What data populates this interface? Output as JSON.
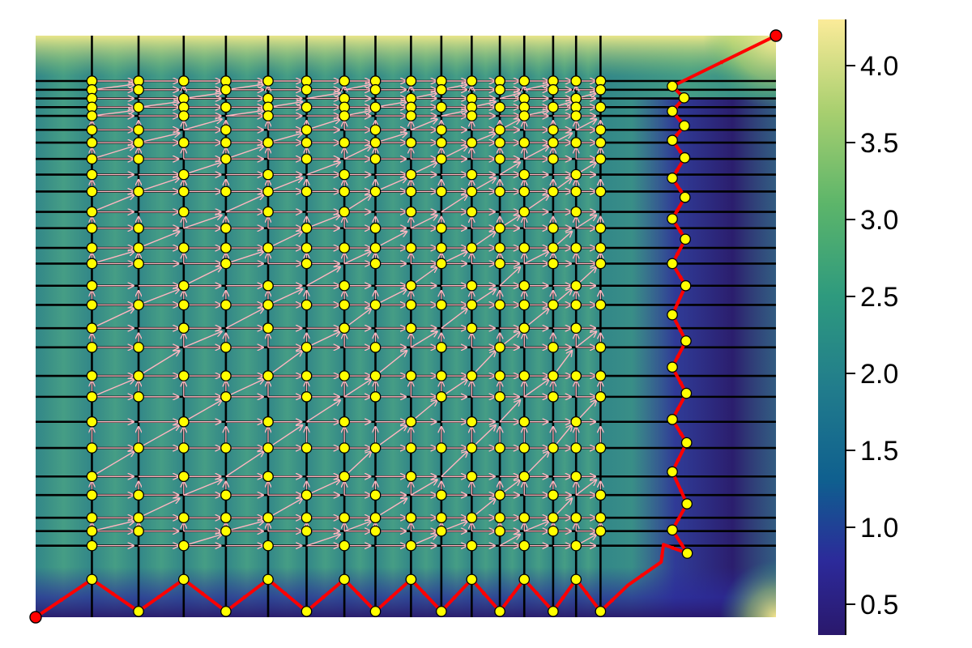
{
  "chart_data": {
    "type": "heatmap",
    "title": "",
    "xlabel": "",
    "ylabel": "",
    "colormap": "haline",
    "colorbar": {
      "range": [
        0.3,
        4.3
      ],
      "ticks": [
        0.5,
        1.0,
        1.5,
        2.0,
        2.5,
        3.0,
        3.5,
        4.0
      ],
      "tick_labels": [
        "0.5",
        "1.0",
        "1.5",
        "2.0",
        "2.5",
        "3.0",
        "3.5",
        "4.0"
      ]
    },
    "grid_columns": [
      0.076,
      0.139,
      0.2,
      0.257,
      0.314,
      0.366,
      0.417,
      0.459,
      0.507,
      0.548,
      0.589,
      0.627,
      0.66,
      0.699,
      0.73,
      0.763
    ],
    "grid_rows": [
      0.078,
      0.093,
      0.108,
      0.123,
      0.138,
      0.162,
      0.184,
      0.212,
      0.239,
      0.268,
      0.303,
      0.331,
      0.365,
      0.392,
      0.43,
      0.463,
      0.503,
      0.536,
      0.585,
      0.621,
      0.664,
      0.709,
      0.758,
      0.79,
      0.829,
      0.852,
      0.877
    ],
    "start_point": [
      0,
      1
    ],
    "end_point": [
      1,
      0
    ],
    "colors": {
      "grid_lines": "#000000",
      "nodes": "#ffff00",
      "endpoints": "#ff0000",
      "arrows": "#ffb6c1",
      "path": "#ff0000"
    }
  }
}
